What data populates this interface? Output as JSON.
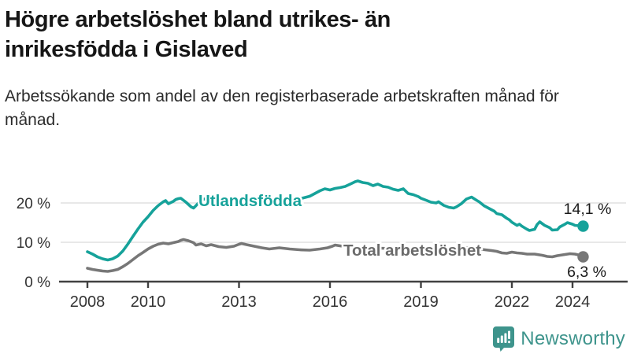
{
  "header": {
    "title": "Högre arbetslöshet bland utrikes- än inrikesfödda i Gislaved",
    "subtitle": "Arbetssökande som andel av den registerbaserade arbetskraften månad för månad."
  },
  "footer": {
    "brand": "Newsworthy",
    "logo_icon": "bar-chart-speech-bubble-icon"
  },
  "colors": {
    "accent_teal": "#16a29a",
    "series_gray": "#777777",
    "series_gray_label": "#6b6b6b",
    "grid": "#d9d9d9",
    "axis": "#414141",
    "tick_text": "#333333",
    "value_text": "#1a1a1a",
    "title_text": "#161616",
    "brand_teal": "#3e948c"
  },
  "chart_data": {
    "type": "line",
    "title": "Högre arbetslöshet bland utrikes- än inrikesfödda i Gislaved",
    "subtitle": "Arbetssökande som andel av den registerbaserade arbetskraften månad för månad.",
    "unit": "%",
    "grid": true,
    "legend_position": "inline-on-lines",
    "xlim": [
      2007.9,
      2024.6
    ],
    "ylim": [
      0,
      27
    ],
    "x_ticks": [
      "2008",
      "2010",
      "2013",
      "2016",
      "2019",
      "2022",
      "2024"
    ],
    "x_tick_values": [
      2008,
      2010,
      2013,
      2016,
      2019,
      2022,
      2024
    ],
    "y_ticks": [
      "0 %",
      "10 %",
      "20 %"
    ],
    "y_tick_values": [
      0,
      10,
      20
    ],
    "series": [
      {
        "name": "Utlandsfödda",
        "color": "#16a29a",
        "end_label": "14,1 %",
        "end_value": 14.1,
        "points": [
          [
            2008.0,
            7.6
          ],
          [
            2008.17,
            7.0
          ],
          [
            2008.33,
            6.3
          ],
          [
            2008.5,
            5.8
          ],
          [
            2008.67,
            5.5
          ],
          [
            2008.83,
            5.8
          ],
          [
            2009.0,
            6.5
          ],
          [
            2009.17,
            7.8
          ],
          [
            2009.33,
            9.5
          ],
          [
            2009.5,
            11.5
          ],
          [
            2009.67,
            13.4
          ],
          [
            2009.83,
            15.1
          ],
          [
            2010.0,
            16.5
          ],
          [
            2010.17,
            18.1
          ],
          [
            2010.33,
            19.3
          ],
          [
            2010.5,
            20.3
          ],
          [
            2010.58,
            20.6
          ],
          [
            2010.67,
            19.8
          ],
          [
            2010.83,
            20.4
          ],
          [
            2010.92,
            20.9
          ],
          [
            2011.0,
            21.1
          ],
          [
            2011.08,
            21.2
          ],
          [
            2011.25,
            20.2
          ],
          [
            2011.42,
            19.0
          ],
          [
            2011.5,
            18.7
          ],
          [
            2011.58,
            19.3
          ],
          [
            2011.67,
            20.1
          ],
          [
            2011.75,
            20.8
          ],
          [
            2011.92,
            21.1
          ],
          [
            2012.17,
            20.9
          ],
          [
            2012.5,
            21.0
          ],
          [
            2012.83,
            20.7
          ],
          [
            2013.17,
            20.5
          ],
          [
            2013.5,
            20.4
          ],
          [
            2013.83,
            20.6
          ],
          [
            2014.17,
            20.8
          ],
          [
            2014.5,
            20.6
          ],
          [
            2014.83,
            21.0
          ],
          [
            2015.08,
            21.2
          ],
          [
            2015.33,
            21.7
          ],
          [
            2015.5,
            22.4
          ],
          [
            2015.67,
            23.1
          ],
          [
            2015.83,
            23.6
          ],
          [
            2016.0,
            23.3
          ],
          [
            2016.17,
            23.7
          ],
          [
            2016.33,
            23.9
          ],
          [
            2016.5,
            24.2
          ],
          [
            2016.67,
            24.8
          ],
          [
            2016.83,
            25.4
          ],
          [
            2016.92,
            25.6
          ],
          [
            2017.08,
            25.2
          ],
          [
            2017.25,
            25.0
          ],
          [
            2017.42,
            24.4
          ],
          [
            2017.58,
            24.8
          ],
          [
            2017.75,
            24.2
          ],
          [
            2017.92,
            24.0
          ],
          [
            2018.08,
            23.5
          ],
          [
            2018.25,
            23.2
          ],
          [
            2018.42,
            23.6
          ],
          [
            2018.58,
            22.4
          ],
          [
            2018.75,
            22.1
          ],
          [
            2018.92,
            21.6
          ],
          [
            2019.0,
            21.2
          ],
          [
            2019.17,
            20.7
          ],
          [
            2019.33,
            20.2
          ],
          [
            2019.5,
            20.0
          ],
          [
            2019.58,
            20.3
          ],
          [
            2019.75,
            19.4
          ],
          [
            2019.92,
            18.9
          ],
          [
            2020.08,
            18.7
          ],
          [
            2020.17,
            19.0
          ],
          [
            2020.33,
            19.8
          ],
          [
            2020.5,
            21.0
          ],
          [
            2020.67,
            21.5
          ],
          [
            2020.83,
            20.7
          ],
          [
            2020.92,
            20.3
          ],
          [
            2021.08,
            19.3
          ],
          [
            2021.25,
            18.6
          ],
          [
            2021.42,
            17.9
          ],
          [
            2021.5,
            17.3
          ],
          [
            2021.67,
            17.0
          ],
          [
            2021.83,
            16.1
          ],
          [
            2021.92,
            15.7
          ],
          [
            2022.0,
            15.1
          ],
          [
            2022.17,
            14.3
          ],
          [
            2022.25,
            14.6
          ],
          [
            2022.33,
            14.1
          ],
          [
            2022.5,
            13.3
          ],
          [
            2022.58,
            13.0
          ],
          [
            2022.75,
            13.3
          ],
          [
            2022.83,
            14.5
          ],
          [
            2022.92,
            15.2
          ],
          [
            2023.08,
            14.3
          ],
          [
            2023.25,
            13.7
          ],
          [
            2023.33,
            13.1
          ],
          [
            2023.5,
            13.2
          ],
          [
            2023.58,
            13.9
          ],
          [
            2023.75,
            14.6
          ],
          [
            2023.83,
            15.0
          ],
          [
            2024.0,
            14.6
          ],
          [
            2024.08,
            14.3
          ],
          [
            2024.25,
            14.2
          ],
          [
            2024.35,
            14.1
          ]
        ]
      },
      {
        "name": "Total arbetslöshet",
        "color": "#777777",
        "end_label": "6,3 %",
        "end_value": 6.3,
        "points": [
          [
            2008.0,
            3.4
          ],
          [
            2008.17,
            3.1
          ],
          [
            2008.33,
            2.9
          ],
          [
            2008.5,
            2.7
          ],
          [
            2008.67,
            2.6
          ],
          [
            2008.83,
            2.8
          ],
          [
            2009.0,
            3.1
          ],
          [
            2009.17,
            3.8
          ],
          [
            2009.33,
            4.6
          ],
          [
            2009.5,
            5.6
          ],
          [
            2009.67,
            6.6
          ],
          [
            2009.83,
            7.4
          ],
          [
            2010.0,
            8.3
          ],
          [
            2010.17,
            9.0
          ],
          [
            2010.33,
            9.5
          ],
          [
            2010.5,
            9.8
          ],
          [
            2010.67,
            9.6
          ],
          [
            2010.83,
            9.9
          ],
          [
            2011.0,
            10.2
          ],
          [
            2011.08,
            10.5
          ],
          [
            2011.17,
            10.7
          ],
          [
            2011.33,
            10.4
          ],
          [
            2011.5,
            9.9
          ],
          [
            2011.58,
            9.3
          ],
          [
            2011.75,
            9.6
          ],
          [
            2011.92,
            9.1
          ],
          [
            2012.08,
            9.4
          ],
          [
            2012.33,
            8.9
          ],
          [
            2012.58,
            8.7
          ],
          [
            2012.83,
            9.0
          ],
          [
            2013.0,
            9.5
          ],
          [
            2013.08,
            9.7
          ],
          [
            2013.25,
            9.4
          ],
          [
            2013.5,
            9.0
          ],
          [
            2013.75,
            8.6
          ],
          [
            2014.0,
            8.3
          ],
          [
            2014.33,
            8.6
          ],
          [
            2014.67,
            8.3
          ],
          [
            2015.0,
            8.1
          ],
          [
            2015.33,
            8.0
          ],
          [
            2015.67,
            8.3
          ],
          [
            2015.92,
            8.6
          ],
          [
            2016.08,
            9.0
          ],
          [
            2016.17,
            9.3
          ],
          [
            2016.33,
            9.1
          ],
          [
            2016.5,
            8.9
          ],
          [
            2016.75,
            8.8
          ],
          [
            2017.0,
            8.6
          ],
          [
            2017.33,
            8.8
          ],
          [
            2017.67,
            8.5
          ],
          [
            2018.0,
            8.4
          ],
          [
            2018.33,
            8.3
          ],
          [
            2018.67,
            8.1
          ],
          [
            2019.0,
            8.0
          ],
          [
            2019.33,
            7.9
          ],
          [
            2019.67,
            7.8
          ],
          [
            2020.0,
            7.9
          ],
          [
            2020.33,
            8.3
          ],
          [
            2020.58,
            8.7
          ],
          [
            2020.83,
            8.4
          ],
          [
            2021.0,
            8.2
          ],
          [
            2021.33,
            7.9
          ],
          [
            2021.5,
            7.7
          ],
          [
            2021.67,
            7.3
          ],
          [
            2021.83,
            7.2
          ],
          [
            2022.0,
            7.5
          ],
          [
            2022.17,
            7.3
          ],
          [
            2022.33,
            7.2
          ],
          [
            2022.5,
            7.0
          ],
          [
            2022.75,
            7.0
          ],
          [
            2023.0,
            6.7
          ],
          [
            2023.17,
            6.4
          ],
          [
            2023.33,
            6.3
          ],
          [
            2023.5,
            6.6
          ],
          [
            2023.75,
            6.9
          ],
          [
            2023.92,
            7.1
          ],
          [
            2024.08,
            7.0
          ],
          [
            2024.25,
            6.7
          ],
          [
            2024.35,
            6.3
          ]
        ]
      }
    ]
  }
}
